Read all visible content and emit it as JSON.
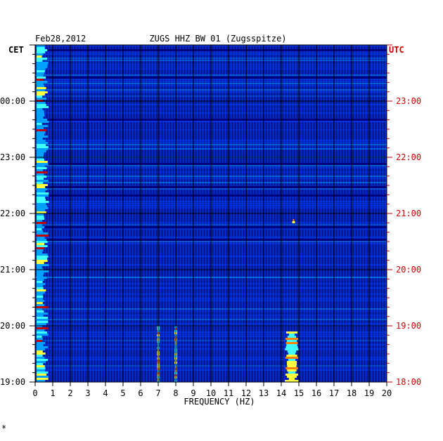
{
  "chart_data": {
    "type": "heatmap",
    "date_label": "Feb28,2012",
    "title": "ZUGS HHZ BW 01 (Zugsspitze)",
    "left_axis_label": "CET",
    "right_axis_label": "UTC",
    "xlabel": "FREQUENCY (HZ)",
    "xlim": [
      0,
      20
    ],
    "x_ticks": [
      "0",
      "1",
      "2",
      "3",
      "4",
      "5",
      "6",
      "7",
      "8",
      "9",
      "10",
      "11",
      "12",
      "13",
      "14",
      "15",
      "16",
      "17",
      "18",
      "19",
      "20"
    ],
    "left_time_ticks": [
      "19:00",
      "20:00",
      "21:00",
      "22:00",
      "23:00",
      "00:00"
    ],
    "right_time_ticks": [
      "18:00",
      "19:00",
      "20:00",
      "21:00",
      "22:00",
      "23:00"
    ],
    "time_tick_hours_from_bottom": [
      0,
      1,
      2,
      3,
      4,
      5
    ],
    "time_span_hours": 6,
    "grid": true,
    "colormap": [
      "#00007a",
      "#0010c8",
      "#0040ff",
      "#00a0ff",
      "#40ffff",
      "#ffff40",
      "#ff8000",
      "#c00000"
    ],
    "background_color": "#0a1ea0",
    "features": [
      {
        "freq_hz": 0.3,
        "description": "strong low-frequency band"
      },
      {
        "freq_hz": 7.0,
        "from_hour": 0.0,
        "to_hour": 1.0
      },
      {
        "freq_hz": 8.0,
        "from_hour": 0.0,
        "to_hour": 1.0
      },
      {
        "freq_hz": 14.6,
        "from_hour": 0.0,
        "to_hour": 0.9
      },
      {
        "freq_hz": 14.7,
        "from_hour": 2.85,
        "to_hour": 2.9
      }
    ]
  },
  "footer_mark": "*"
}
